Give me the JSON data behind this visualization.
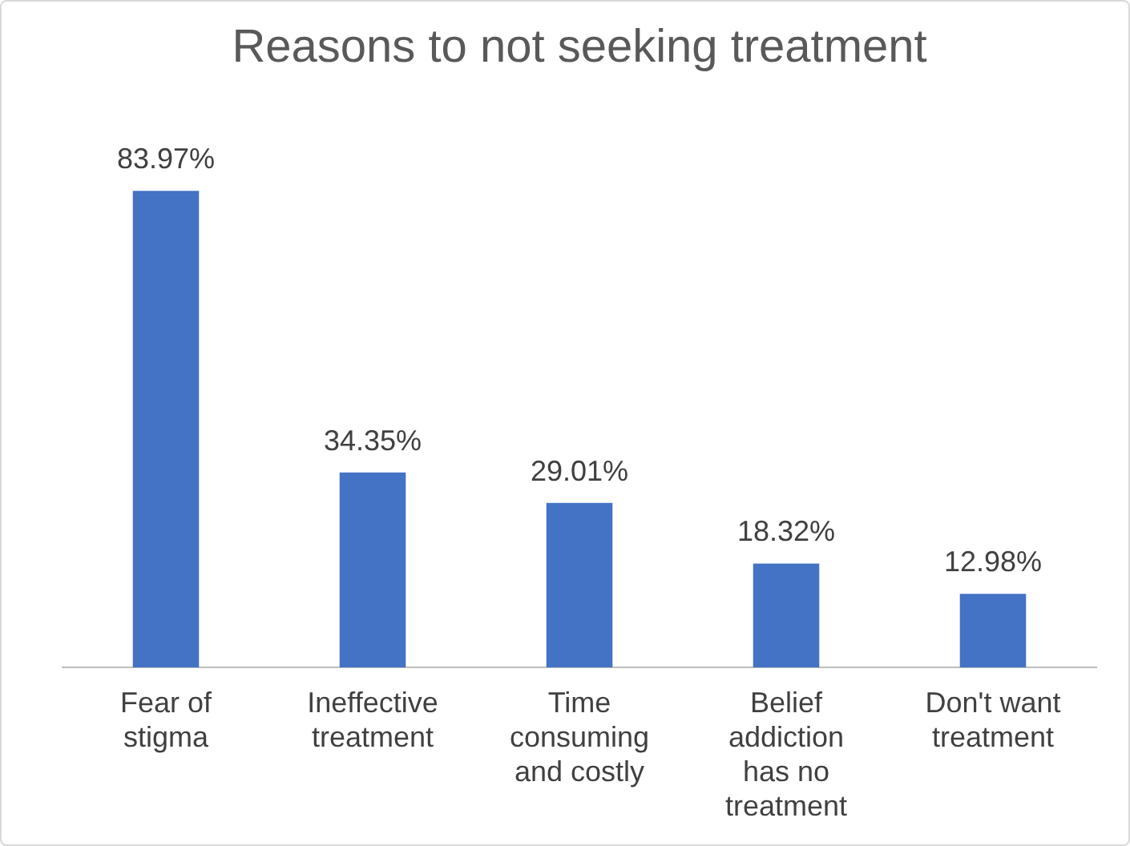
{
  "chart_data": {
    "type": "bar",
    "title": "Reasons to not seeking treatment",
    "categories": [
      "Fear of stigma",
      "Ineffective treatment",
      "Time consuming and costly",
      "Belief addiction has no treatment",
      "Don't want treatment"
    ],
    "values": [
      83.97,
      34.35,
      29.01,
      18.32,
      12.98
    ],
    "value_labels": [
      "83.97%",
      "34.35%",
      "29.01%",
      "18.32%",
      "12.98%"
    ],
    "color": "#4472c4",
    "grid": false,
    "legend": false
  }
}
